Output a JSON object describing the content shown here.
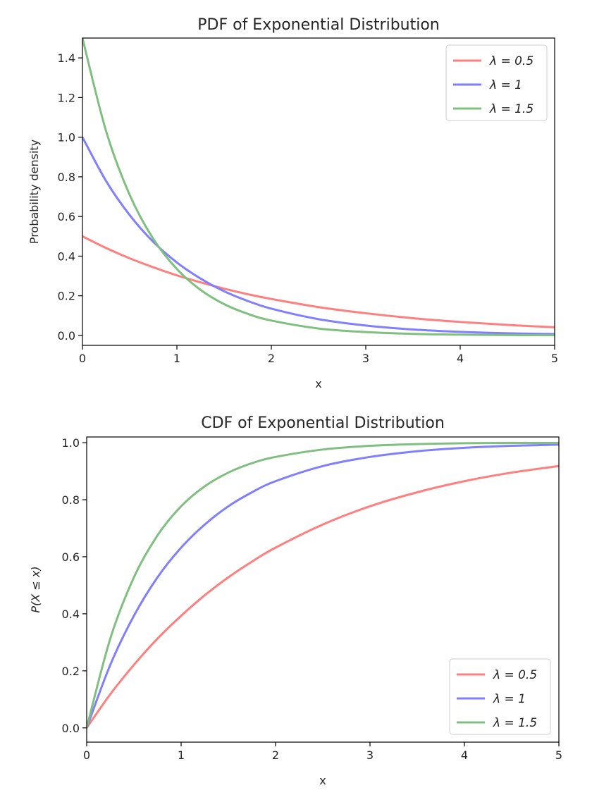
{
  "chart_data": [
    {
      "type": "line",
      "title": "PDF of Exponential Distribution",
      "xlabel": "x",
      "ylabel": "Probability density",
      "xlim": [
        0,
        5
      ],
      "ylim": [
        -0.05,
        1.5
      ],
      "xticks": [
        0,
        1,
        2,
        3,
        4,
        5
      ],
      "xtick_labels": [
        "0",
        "1",
        "2",
        "3",
        "4",
        "5"
      ],
      "yticks": [
        0.0,
        0.2,
        0.4,
        0.6,
        0.8,
        1.0,
        1.2,
        1.4
      ],
      "ytick_labels": [
        "0.0",
        "0.2",
        "0.4",
        "0.6",
        "0.8",
        "1.0",
        "1.2",
        "1.4"
      ],
      "grid": false,
      "legend_position": "top-right",
      "x": [
        0,
        0.25,
        0.5,
        0.75,
        1,
        1.25,
        1.5,
        1.75,
        2,
        2.5,
        3,
        3.5,
        4,
        4.5,
        5
      ],
      "series": [
        {
          "name": "λ = 0.5",
          "color": "#ff7f7f",
          "values": [
            0.5,
            0.441,
            0.389,
            0.344,
            0.303,
            0.268,
            0.236,
            0.208,
            0.184,
            0.143,
            0.112,
            0.087,
            0.068,
            0.053,
            0.041
          ]
        },
        {
          "name": "λ = 1",
          "color": "#7f7fff",
          "values": [
            1.0,
            0.779,
            0.607,
            0.472,
            0.368,
            0.287,
            0.223,
            0.174,
            0.135,
            0.082,
            0.05,
            0.03,
            0.018,
            0.011,
            0.007
          ]
        },
        {
          "name": "λ = 1.5",
          "color": "#7fbf7f",
          "values": [
            1.5,
            1.031,
            0.709,
            0.487,
            0.335,
            0.23,
            0.158,
            0.109,
            0.075,
            0.035,
            0.017,
            0.008,
            0.004,
            0.002,
            0.001
          ]
        }
      ]
    },
    {
      "type": "line",
      "title": "CDF of Exponential Distribution",
      "xlabel": "x",
      "ylabel": "P(X ≤ x)",
      "xlim": [
        0,
        5
      ],
      "ylim": [
        -0.05,
        1.02
      ],
      "xticks": [
        0,
        1,
        2,
        3,
        4,
        5
      ],
      "xtick_labels": [
        "0",
        "1",
        "2",
        "3",
        "4",
        "5"
      ],
      "yticks": [
        0.0,
        0.2,
        0.4,
        0.6,
        0.8,
        1.0
      ],
      "ytick_labels": [
        "0.0",
        "0.2",
        "0.4",
        "0.6",
        "0.8",
        "1.0"
      ],
      "grid": false,
      "legend_position": "bottom-right",
      "x": [
        0,
        0.25,
        0.5,
        0.75,
        1,
        1.25,
        1.5,
        1.75,
        2,
        2.5,
        3,
        3.5,
        4,
        4.5,
        5
      ],
      "series": [
        {
          "name": "λ = 0.5",
          "color": "#ff7f7f",
          "values": [
            0.0,
            0.118,
            0.221,
            0.313,
            0.393,
            0.465,
            0.528,
            0.583,
            0.632,
            0.713,
            0.777,
            0.826,
            0.865,
            0.895,
            0.918
          ]
        },
        {
          "name": "λ = 1",
          "color": "#7f7fff",
          "values": [
            0.0,
            0.221,
            0.393,
            0.528,
            0.632,
            0.713,
            0.777,
            0.826,
            0.865,
            0.918,
            0.95,
            0.97,
            0.982,
            0.989,
            0.993
          ]
        },
        {
          "name": "λ = 1.5",
          "color": "#7fbf7f",
          "values": [
            0.0,
            0.313,
            0.528,
            0.675,
            0.777,
            0.847,
            0.895,
            0.928,
            0.95,
            0.976,
            0.989,
            0.995,
            0.998,
            0.999,
            0.999
          ]
        }
      ]
    }
  ]
}
